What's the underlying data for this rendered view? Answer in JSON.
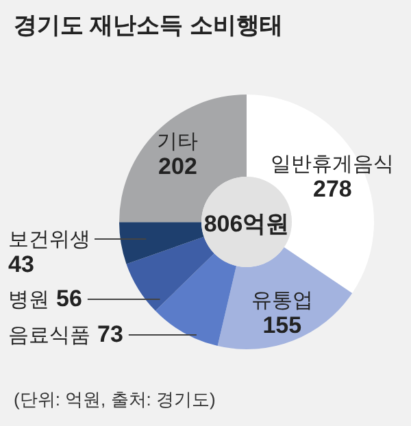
{
  "chart_data": {
    "type": "donut",
    "title": "경기도 재난소득 소비행태",
    "categories": [
      "일반휴게음식",
      "유통업",
      "음료식품",
      "병원",
      "보건위생",
      "기타"
    ],
    "values": [
      278,
      155,
      73,
      56,
      43,
      202
    ],
    "colors": [
      "#ffffff",
      "#a3b3df",
      "#5b7cc9",
      "#3e5ea6",
      "#1e3f6e",
      "#a6a7a9"
    ],
    "data_labels": true,
    "annotations": [
      "806억원",
      "(단위: 억원, 출처: 경기도)"
    ]
  }
}
